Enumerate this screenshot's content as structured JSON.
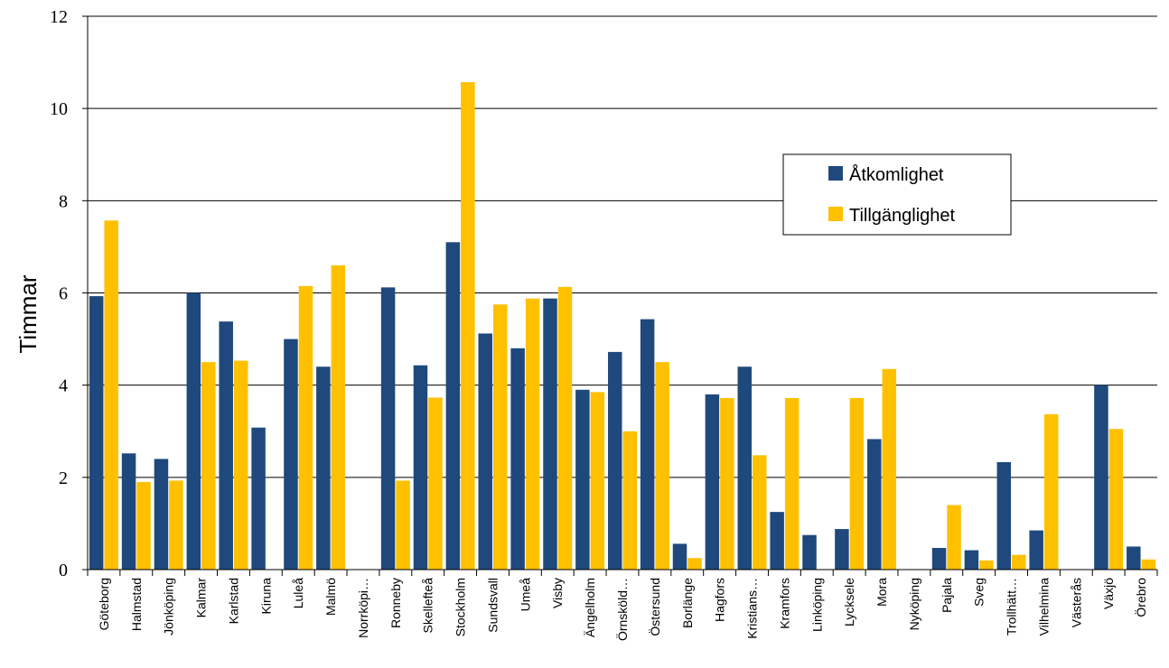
{
  "chart_data": {
    "type": "bar",
    "title": "",
    "xlabel": "",
    "ylabel": "Timmar",
    "ylim": [
      0,
      12
    ],
    "yticks": [
      "0",
      "2",
      "4",
      "6",
      "8",
      "10",
      "12"
    ],
    "grid": true,
    "legend_position": "top-right",
    "categories": [
      "Göteborg",
      "Halmstad",
      "Jönköping",
      "Kalmar",
      "Karlstad",
      "Kiruna",
      "Luleå",
      "Malmö",
      "Norrköpi…",
      "Ronneby",
      "Skellefteå",
      "Stockholm",
      "Sundsvall",
      "Umeå",
      "Visby",
      "Ängelholm",
      "Örnsköld…",
      "Östersund",
      "Borlänge",
      "Hagfors",
      "Kristians…",
      "Kramfors",
      "Linköping",
      "Lycksele",
      "Mora",
      "Nyköping",
      "Pajala",
      "Sveg",
      "Trollhätt…",
      "Vilhelmina",
      "Västerås",
      "Växjö",
      "Örebro"
    ],
    "series": [
      {
        "name": "Åtkomlighet",
        "color": "#1f497d",
        "values": [
          5.93,
          2.52,
          2.4,
          6.0,
          5.38,
          3.08,
          5.0,
          4.4,
          0,
          6.12,
          4.43,
          7.1,
          5.12,
          4.8,
          5.88,
          3.9,
          4.72,
          5.43,
          0.56,
          3.8,
          4.4,
          1.25,
          0.75,
          0.88,
          2.83,
          0,
          0.47,
          0.42,
          2.33,
          0.85,
          0,
          4.0,
          0.5
        ]
      },
      {
        "name": "Tillgänglighet",
        "color": "#ffc000",
        "values": [
          7.57,
          1.9,
          1.93,
          4.5,
          4.53,
          0,
          6.15,
          6.6,
          0,
          1.93,
          3.73,
          10.57,
          5.75,
          5.88,
          6.13,
          3.85,
          3.0,
          4.5,
          0.25,
          3.72,
          2.48,
          3.72,
          0,
          3.72,
          4.35,
          0,
          1.4,
          0.2,
          0.32,
          3.37,
          0,
          3.05,
          0.22
        ]
      }
    ]
  }
}
